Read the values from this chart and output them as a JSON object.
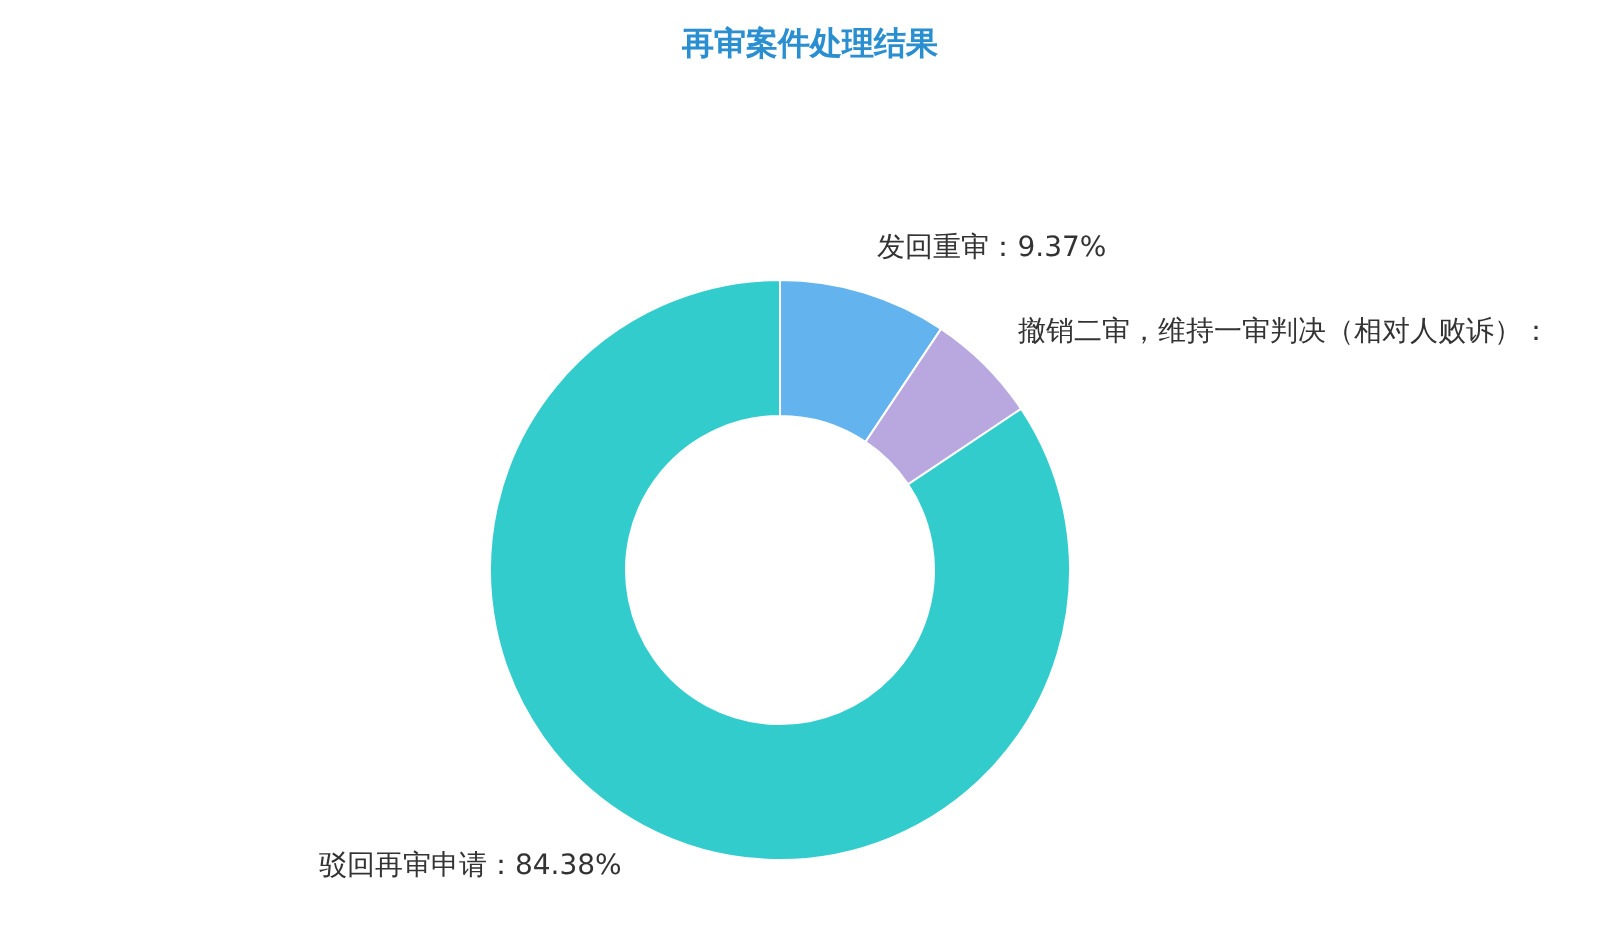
{
  "chart_data": {
    "type": "donut",
    "title": "再审案件处理结果",
    "categories": [
      "发回重审",
      "撤销二审，维持一审判决（相对人败诉）",
      "驳回再审申请"
    ],
    "values": [
      9.37,
      6.25,
      84.38
    ],
    "value_labels": [
      "：9.37%",
      "：",
      "：84.38%"
    ],
    "colors": [
      "#62b3ee",
      "#b9a7e0",
      "#33cccc"
    ],
    "legend": false
  }
}
